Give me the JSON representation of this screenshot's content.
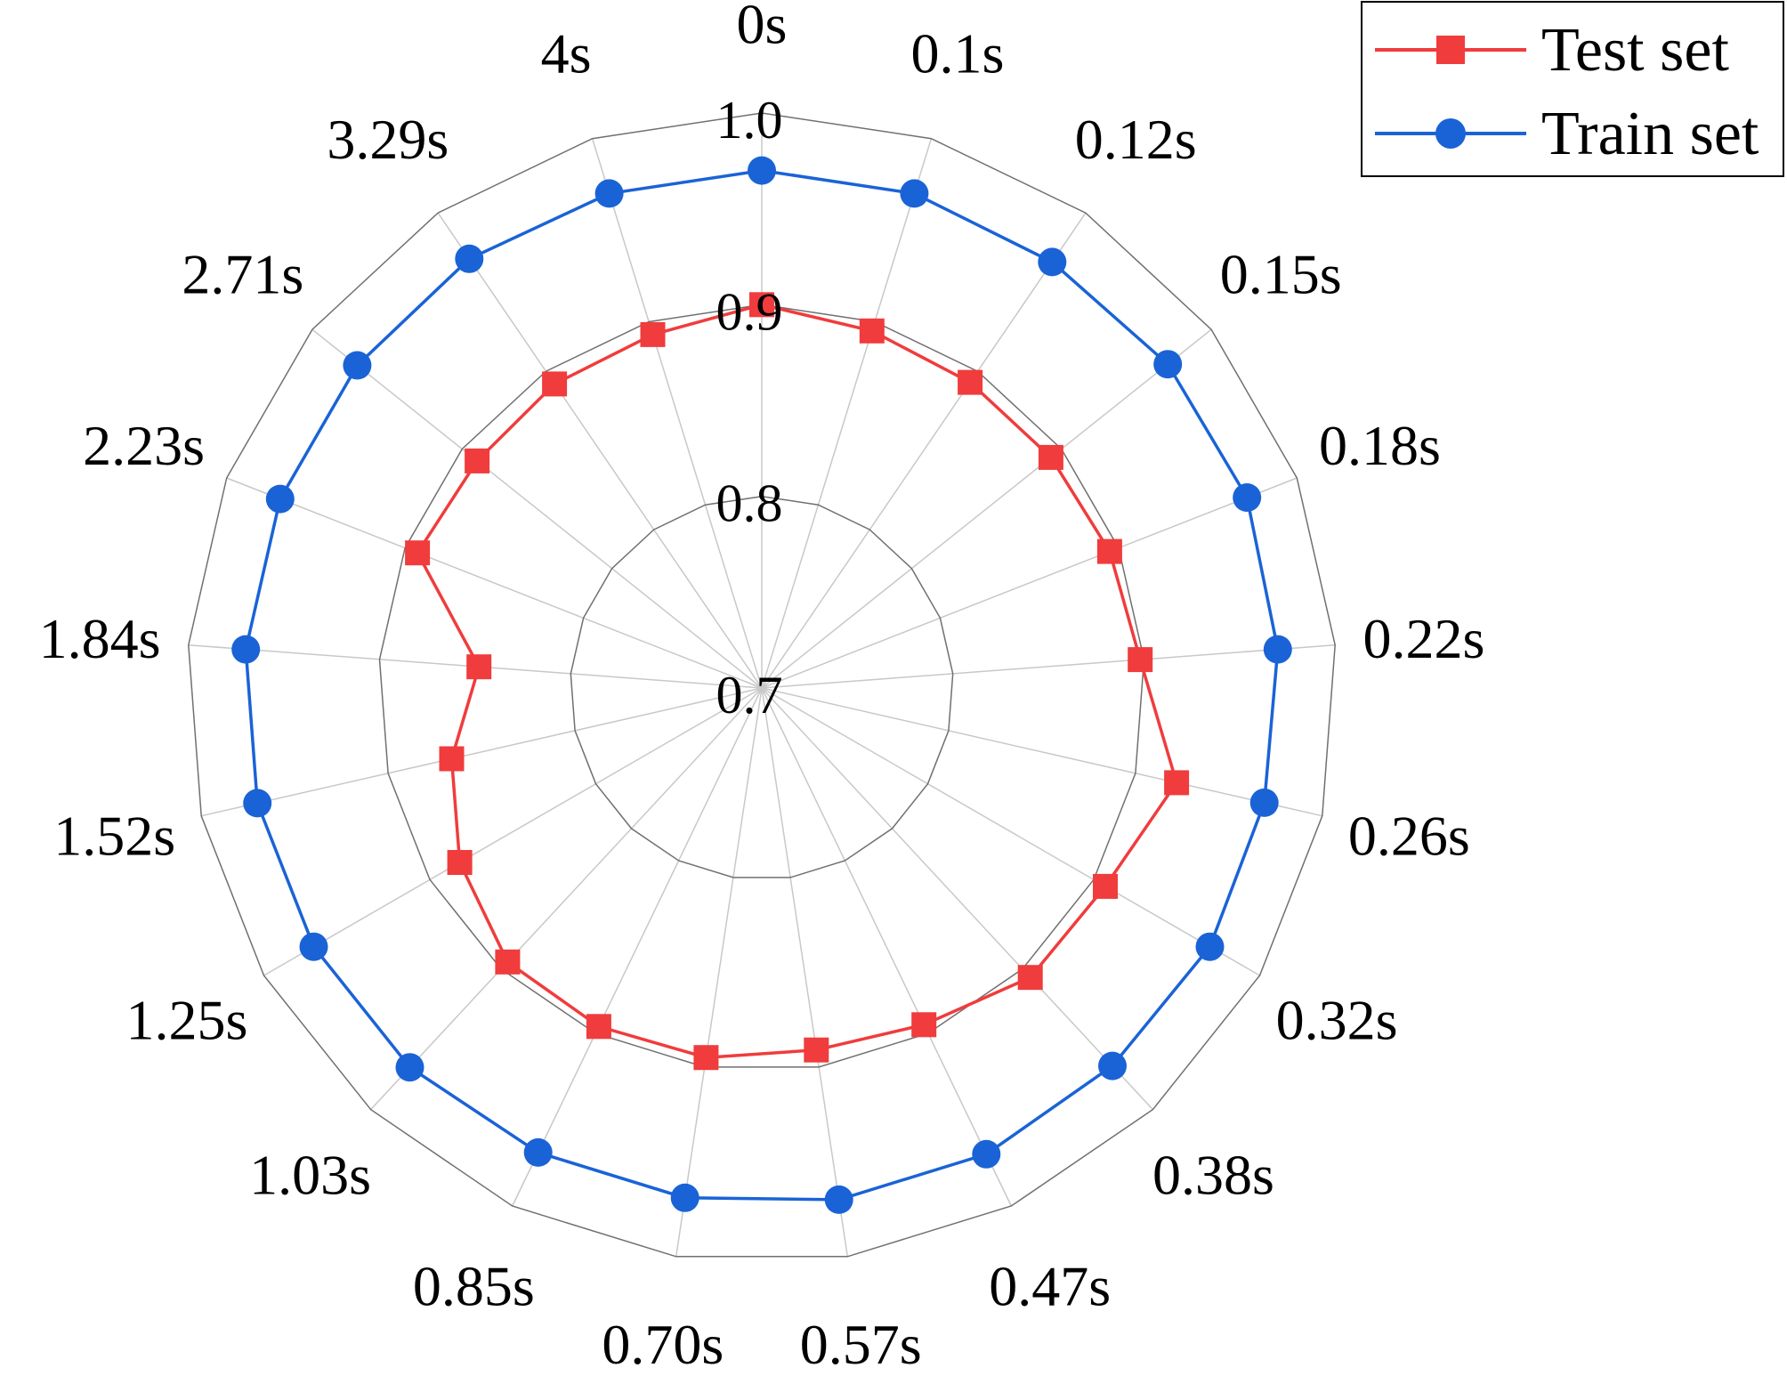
{
  "chart_data": {
    "type": "radar",
    "categories": [
      "0s",
      "0.1s",
      "0.12s",
      "0.15s",
      "0.18s",
      "0.22s",
      "0.26s",
      "0.32s",
      "0.38s",
      "0.47s",
      "0.57s",
      "0.70s",
      "0.85s",
      "1.03s",
      "1.25s",
      "1.52s",
      "1.84s",
      "2.23s",
      "2.71s",
      "3.29s",
      "4s"
    ],
    "rlim": [
      0.7,
      1.0
    ],
    "ring_values": [
      0.7,
      0.8,
      0.9,
      1.0
    ],
    "ring_labels": [
      "0.7",
      "0.8",
      "0.9",
      "1.0"
    ],
    "grid": true,
    "legend": "top-right",
    "series": [
      {
        "name": "Test set",
        "color": "#f03c3c",
        "marker": "square",
        "values": [
          0.9,
          0.895,
          0.893,
          0.893,
          0.895,
          0.898,
          0.922,
          0.907,
          0.906,
          0.895,
          0.891,
          0.895,
          0.896,
          0.895,
          0.882,
          0.866,
          0.848,
          0.893,
          0.89,
          0.892,
          0.893
        ]
      },
      {
        "name": "Train set",
        "color": "#1a63d6",
        "marker": "circle",
        "values": [
          0.97,
          0.97,
          0.969,
          0.971,
          0.972,
          0.97,
          0.969,
          0.97,
          0.969,
          0.97,
          0.97,
          0.969,
          0.969,
          0.97,
          0.97,
          0.97,
          0.97,
          0.97,
          0.97,
          0.971,
          0.97
        ]
      }
    ]
  }
}
